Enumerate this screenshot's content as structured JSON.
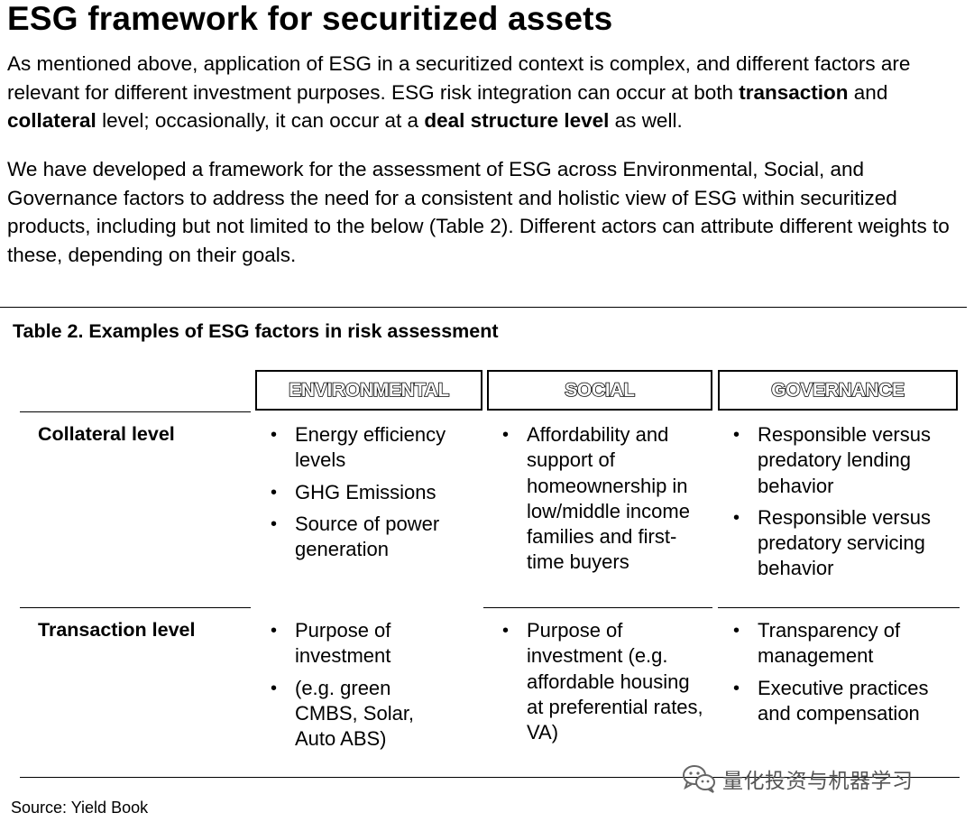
{
  "title": "ESG framework for securitized assets",
  "para1": {
    "t1": "As mentioned above, application of ESG in a securitized context is complex, and different factors are relevant for different investment purposes. ESG risk integration can occur at both ",
    "b1": "transaction",
    "t2": " and ",
    "b2": "collateral",
    "t3": " level; occasionally, it can occur at a ",
    "b3": "deal structure level",
    "t4": " as well."
  },
  "para2": "We have developed a framework for the assessment of ESG across Environmental, Social, and Governance factors to address the need for a consistent and holistic view of ESG within securitized products, including but not limited to the below (Table 2). Different actors can attribute different weights to these, depending on their goals.",
  "table": {
    "title": "Table 2. Examples of ESG factors in risk assessment",
    "headers": [
      "ENVIRONMENTAL",
      "SOCIAL",
      "GOVERNANCE"
    ],
    "rows": [
      {
        "label": "Collateral level",
        "environmental": [
          "Energy efficiency levels",
          "GHG Emissions",
          "Source of power generation"
        ],
        "social": [
          "Affordability and support of homeownership in low/middle income families and first-time buyers"
        ],
        "governance": [
          "Responsible versus predatory lending behavior",
          "Responsible versus predatory servicing behavior"
        ]
      },
      {
        "label": "Transaction level",
        "environmental": [
          "Purpose of investment",
          "(e.g. green CMBS, Solar, Auto ABS)"
        ],
        "social": [
          "Purpose of investment (e.g. affordable housing at preferential rates, VA)"
        ],
        "governance": [
          "Transparency of management",
          "Executive practices and compensation"
        ]
      }
    ],
    "source": "Source: Yield Book"
  },
  "watermark": {
    "icon": "wechat-icon",
    "text": "量化投资与机器学习"
  }
}
